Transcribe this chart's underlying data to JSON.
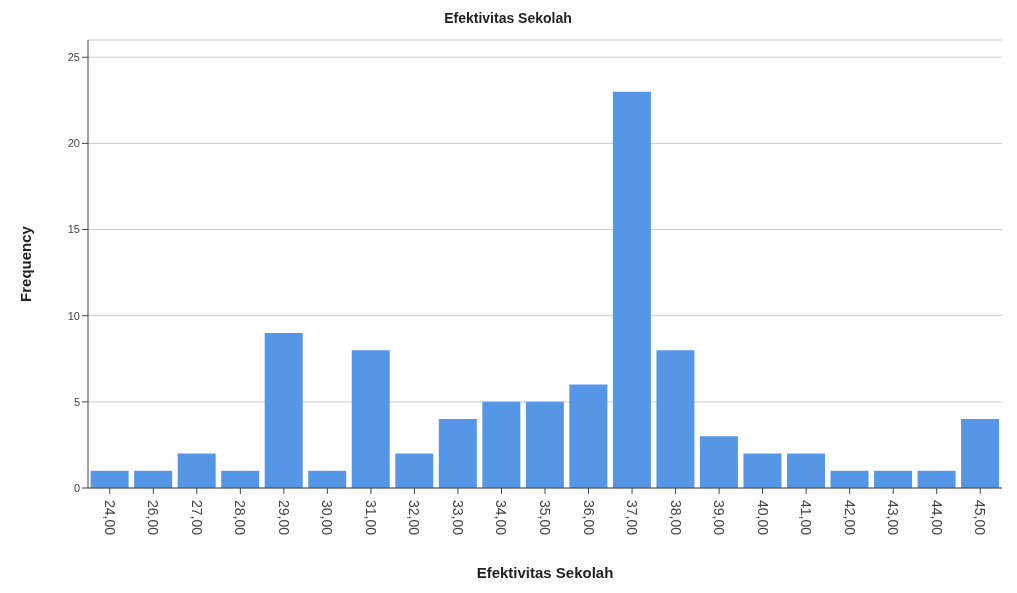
{
  "chart_data": {
    "type": "bar",
    "title": "Efektivitas Sekolah",
    "xlabel": "Efektivitas Sekolah",
    "ylabel": "Frequency",
    "categories": [
      "24,00",
      "26,00",
      "27,00",
      "28,00",
      "29,00",
      "30,00",
      "31,00",
      "32,00",
      "33,00",
      "34,00",
      "35,00",
      "36,00",
      "37,00",
      "38,00",
      "39,00",
      "40,00",
      "41,00",
      "42,00",
      "43,00",
      "44,00",
      "45,00"
    ],
    "values": [
      1,
      1,
      2,
      1,
      9,
      1,
      8,
      2,
      4,
      5,
      5,
      6,
      23,
      8,
      3,
      2,
      2,
      1,
      1,
      1,
      4
    ],
    "color": "#5596e6",
    "ylim": [
      0,
      26
    ],
    "yticks": [
      0,
      5,
      10,
      15,
      20,
      25
    ],
    "grid": "y"
  }
}
